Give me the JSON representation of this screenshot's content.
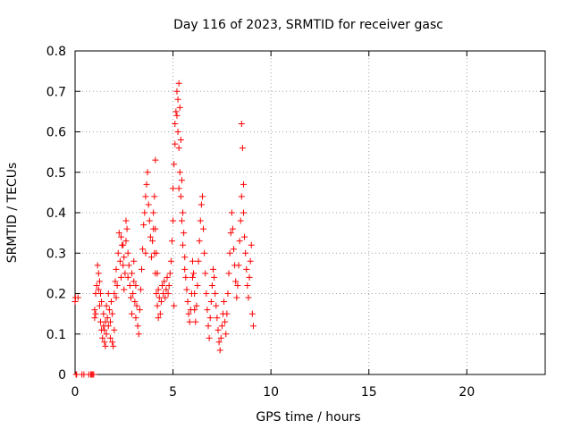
{
  "chart_data": {
    "type": "scatter",
    "title": "Day 116 of 2023, SRMTID for receiver gasc",
    "xlabel": "GPS time / hours",
    "ylabel": "SRMTID / TECUs",
    "xlim": [
      0,
      24
    ],
    "ylim": [
      0,
      0.8
    ],
    "xticks": [
      0,
      5,
      10,
      15,
      20
    ],
    "xtick_labels": [
      "0",
      "5",
      "10",
      "15",
      "20"
    ],
    "yticks": [
      0,
      0.1,
      0.2,
      0.3,
      0.4,
      0.5,
      0.6,
      0.7,
      0.8
    ],
    "ytick_labels": [
      "0",
      "0.1",
      "0.2",
      "0.3",
      "0.4",
      "0.5",
      "0.6",
      "0.7",
      "0.8"
    ],
    "grid": true,
    "legend": "none",
    "marker": "+",
    "color": "#ff0000",
    "series": [
      {
        "name": "SRMTID",
        "x": [
          0.0,
          0.02,
          0.05,
          0.08,
          0.15,
          0.35,
          0.45,
          0.7,
          0.8,
          0.85,
          0.9,
          0.95,
          1.0,
          1.05,
          1.0,
          1.05,
          1.1,
          1.15,
          1.2,
          1.2,
          1.25,
          1.25,
          1.3,
          1.3,
          1.35,
          1.35,
          1.4,
          1.45,
          1.45,
          1.5,
          1.5,
          1.55,
          1.55,
          1.6,
          1.6,
          1.65,
          1.7,
          1.7,
          1.75,
          1.8,
          1.8,
          1.85,
          1.9,
          1.9,
          1.95,
          2.0,
          2.0,
          2.05,
          2.1,
          2.1,
          2.15,
          2.2,
          2.25,
          2.3,
          2.35,
          2.4,
          2.45,
          2.5,
          2.5,
          2.55,
          2.6,
          2.6,
          2.65,
          2.7,
          2.7,
          2.75,
          2.8,
          2.85,
          2.9,
          2.9,
          2.95,
          3.0,
          3.0,
          3.05,
          3.1,
          3.1,
          3.15,
          3.2,
          3.25,
          3.3,
          3.35,
          3.4,
          3.45,
          3.5,
          3.55,
          3.6,
          3.65,
          3.7,
          3.75,
          3.8,
          3.85,
          3.9,
          3.95,
          4.0,
          4.0,
          4.05,
          4.05,
          4.1,
          4.1,
          4.15,
          4.15,
          4.2,
          4.2,
          4.25,
          4.25,
          4.3,
          4.35,
          4.4,
          4.45,
          4.5,
          4.55,
          4.6,
          4.65,
          4.7,
          4.75,
          4.8,
          4.85,
          4.9,
          4.95,
          5.0,
          5.0,
          5.05,
          5.1,
          5.1,
          5.15,
          5.2,
          5.2,
          5.25,
          5.25,
          5.3,
          5.3,
          5.35,
          5.35,
          5.4,
          5.4,
          5.45,
          5.45,
          5.5,
          5.5,
          5.55,
          5.6,
          5.6,
          5.65,
          5.7,
          5.75,
          5.8,
          5.85,
          5.9,
          5.95,
          6.0,
          6.0,
          6.05,
          6.1,
          6.1,
          6.15,
          6.2,
          6.25,
          6.3,
          6.35,
          6.4,
          6.45,
          6.5,
          6.55,
          6.6,
          6.65,
          6.7,
          6.75,
          6.8,
          6.85,
          6.9,
          6.95,
          7.0,
          7.05,
          7.1,
          7.15,
          7.2,
          7.25,
          7.3,
          7.35,
          7.4,
          7.45,
          7.5,
          7.55,
          7.6,
          7.65,
          7.7,
          7.75,
          7.8,
          7.85,
          7.9,
          7.95,
          8.0,
          8.05,
          8.1,
          8.15,
          8.2,
          8.25,
          8.3,
          8.35,
          8.4,
          8.45,
          8.5,
          8.5,
          8.55,
          8.6,
          8.6,
          8.65,
          8.7,
          8.75,
          8.8,
          8.85,
          8.9,
          8.95,
          9.0,
          9.05,
          9.1,
          2.35,
          2.45,
          3.6,
          4.1,
          5.05,
          5.3
        ],
        "y": [
          0.18,
          0.19,
          0.0,
          0.0,
          0.19,
          0.0,
          0.0,
          0.0,
          0.0,
          0.0,
          0.0,
          0.0,
          0.16,
          0.15,
          0.14,
          0.2,
          0.22,
          0.27,
          0.25,
          0.21,
          0.17,
          0.23,
          0.13,
          0.2,
          0.11,
          0.18,
          0.09,
          0.12,
          0.15,
          0.08,
          0.11,
          0.07,
          0.13,
          0.1,
          0.17,
          0.14,
          0.12,
          0.2,
          0.16,
          0.09,
          0.13,
          0.18,
          0.08,
          0.15,
          0.07,
          0.11,
          0.2,
          0.23,
          0.19,
          0.26,
          0.22,
          0.3,
          0.35,
          0.28,
          0.24,
          0.32,
          0.27,
          0.21,
          0.29,
          0.25,
          0.33,
          0.38,
          0.36,
          0.3,
          0.24,
          0.27,
          0.22,
          0.19,
          0.15,
          0.25,
          0.2,
          0.28,
          0.23,
          0.18,
          0.14,
          0.22,
          0.17,
          0.12,
          0.1,
          0.16,
          0.21,
          0.26,
          0.31,
          0.37,
          0.4,
          0.44,
          0.47,
          0.5,
          0.42,
          0.38,
          0.34,
          0.29,
          0.33,
          0.4,
          0.36,
          0.44,
          0.3,
          0.36,
          0.25,
          0.3,
          0.2,
          0.25,
          0.17,
          0.21,
          0.14,
          0.19,
          0.15,
          0.18,
          0.22,
          0.2,
          0.23,
          0.19,
          0.21,
          0.24,
          0.2,
          0.22,
          0.25,
          0.28,
          0.33,
          0.38,
          0.46,
          0.52,
          0.57,
          0.62,
          0.65,
          0.7,
          0.64,
          0.68,
          0.6,
          0.72,
          0.56,
          0.66,
          0.5,
          0.58,
          0.44,
          0.48,
          0.38,
          0.4,
          0.32,
          0.35,
          0.29,
          0.26,
          0.24,
          0.21,
          0.18,
          0.15,
          0.13,
          0.16,
          0.2,
          0.24,
          0.28,
          0.25,
          0.2,
          0.16,
          0.13,
          0.17,
          0.22,
          0.28,
          0.33,
          0.38,
          0.42,
          0.44,
          0.36,
          0.3,
          0.25,
          0.2,
          0.16,
          0.12,
          0.09,
          0.14,
          0.18,
          0.22,
          0.26,
          0.24,
          0.2,
          0.17,
          0.14,
          0.11,
          0.08,
          0.06,
          0.09,
          0.12,
          0.15,
          0.18,
          0.13,
          0.1,
          0.15,
          0.2,
          0.25,
          0.3,
          0.35,
          0.4,
          0.36,
          0.31,
          0.27,
          0.23,
          0.19,
          0.22,
          0.27,
          0.33,
          0.38,
          0.44,
          0.62,
          0.56,
          0.4,
          0.47,
          0.34,
          0.3,
          0.26,
          0.22,
          0.19,
          0.24,
          0.28,
          0.32,
          0.15,
          0.12,
          0.34,
          0.32,
          0.3,
          0.53,
          0.17,
          0.46
        ]
      }
    ]
  }
}
